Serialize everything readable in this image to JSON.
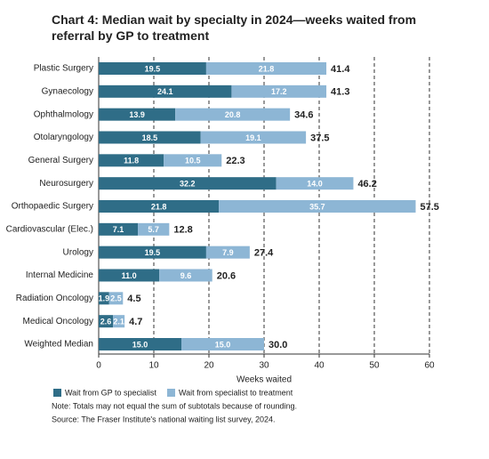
{
  "chart_data": {
    "type": "stacked-barh",
    "title": "Chart 4: Median wait by specialty in 2024—weeks waited from referral by GP to treatment",
    "categories": [
      "Plastic Surgery",
      "Gynaecology",
      "Ophthalmology",
      "Otolaryngology",
      "General Surgery",
      "Neurosurgery",
      "Orthopaedic Surgery",
      "Cardiovascular (Elec.)",
      "Urology",
      "Internal Medicine",
      "Radiation Oncology",
      "Medical Oncology",
      "Weighted Median"
    ],
    "series": [
      {
        "name": "Wait from GP to specialist",
        "color": "#2f6d87",
        "values": [
          19.5,
          24.1,
          13.9,
          18.5,
          11.8,
          32.2,
          21.8,
          7.1,
          19.5,
          11.0,
          1.9,
          2.6,
          15.0
        ],
        "value_labels": [
          "19.5",
          "24.1",
          "13.9",
          "18.5",
          "11.8",
          "32.2",
          "21.8",
          "7.1",
          "19.5",
          "11.0",
          "1.9",
          "2.6",
          "15.0"
        ]
      },
      {
        "name": "Wait from specialist to treatment",
        "color": "#8db6d5",
        "values": [
          21.8,
          17.2,
          20.8,
          19.1,
          10.5,
          14.0,
          35.7,
          5.7,
          7.9,
          9.6,
          2.5,
          2.1,
          15.0
        ],
        "value_labels": [
          "21.8",
          "17.2",
          "20.8",
          "19.1",
          "10.5",
          "14.0",
          "35.7",
          "5.7",
          "7.9",
          "9.6",
          "2.5",
          "2.1",
          "15.0"
        ]
      }
    ],
    "totals": [
      41.4,
      41.3,
      34.6,
      37.5,
      22.3,
      46.2,
      57.5,
      12.8,
      27.4,
      20.6,
      4.5,
      4.7,
      30.0
    ],
    "total_labels": [
      "41.4",
      "41.3",
      "34.6",
      "37.5",
      "22.3",
      "46.2",
      "57.5",
      "12.8",
      "27.4",
      "20.6",
      "4.5",
      "4.7",
      "30.0"
    ],
    "x_label": "Weeks waited",
    "xlim": [
      0,
      60
    ],
    "xticks": [
      0,
      10,
      20,
      30,
      40,
      50,
      60
    ],
    "grid": true,
    "notes": [
      "Note: Totals may not equal the sum of subtotals because of rounding.",
      "Source: The Fraser Institute's national waiting list survey, 2024."
    ]
  }
}
